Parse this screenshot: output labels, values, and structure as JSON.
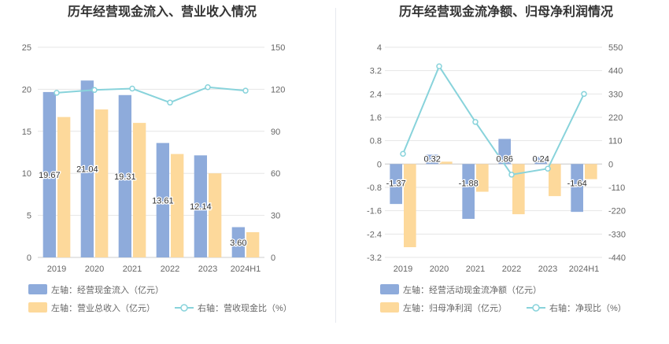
{
  "chart_data": [
    {
      "type": "bar",
      "title": "历年经营现金流入、营业收入情况",
      "categories": [
        "2019",
        "2020",
        "2021",
        "2022",
        "2023",
        "2024H1"
      ],
      "series": [
        {
          "name": "左轴：经营现金流入（亿元）",
          "type": "bar",
          "axis": "left",
          "color": "#8eabdb",
          "values": [
            19.67,
            21.04,
            19.31,
            13.61,
            12.14,
            3.6
          ],
          "labels": [
            "19.67",
            "21.04",
            "19.31",
            "13.61",
            "12.14",
            "3.60"
          ]
        },
        {
          "name": "左轴：营业总收入（亿元）",
          "type": "bar",
          "axis": "left",
          "color": "#fdd99b",
          "values": [
            16.7,
            17.6,
            16.0,
            12.3,
            10.0,
            3.0
          ]
        },
        {
          "name": "右轴：营收现金比（%）",
          "type": "line",
          "axis": "right",
          "color": "#88d3db",
          "values": [
            117.5,
            119.5,
            120.5,
            110.5,
            121.5,
            119.0
          ]
        }
      ],
      "yleft": {
        "ylim": [
          0,
          25
        ],
        "ticks": [
          "0",
          "5",
          "10",
          "15",
          "20",
          "25"
        ]
      },
      "yright": {
        "ylim": [
          0,
          150
        ],
        "ticks": [
          "0",
          "30",
          "60",
          "90",
          "120",
          "150"
        ]
      },
      "grid": true,
      "legend": "bottom"
    },
    {
      "type": "bar",
      "title": "历年经营现金流净额、归母净利润情况",
      "categories": [
        "2019",
        "2020",
        "2021",
        "2022",
        "2023",
        "2024H1"
      ],
      "series": [
        {
          "name": "左轴：经营活动现金流净额（亿元）",
          "type": "bar",
          "axis": "left",
          "color": "#8eabdb",
          "values": [
            -1.37,
            0.32,
            -1.88,
            0.86,
            0.24,
            -1.64
          ],
          "labels": [
            "-1.37",
            "0.32",
            "-1.88",
            "0.86",
            "0.24",
            "-1.64"
          ]
        },
        {
          "name": "左轴：归母净利润（亿元）",
          "type": "bar",
          "axis": "left",
          "color": "#fdd99b",
          "values": [
            -2.85,
            0.08,
            -0.95,
            -1.72,
            -1.1,
            -0.52
          ]
        },
        {
          "name": "右轴：净现比（%）",
          "type": "line",
          "axis": "right",
          "color": "#88d3db",
          "values": [
            48,
            460,
            198,
            -50,
            -22,
            330
          ]
        }
      ],
      "yleft": {
        "ylim": [
          -3.2,
          4
        ],
        "ticks": [
          "-3.2",
          "-2.4",
          "-1.6",
          "-0.8",
          "0",
          "0.8",
          "1.6",
          "2.4",
          "3.2",
          "4"
        ]
      },
      "yright": {
        "ylim": [
          -440,
          550
        ],
        "ticks": [
          "-440",
          "-330",
          "-220",
          "-110",
          "0",
          "110",
          "220",
          "330",
          "440",
          "550"
        ]
      },
      "grid": true,
      "legend": "bottom"
    }
  ]
}
